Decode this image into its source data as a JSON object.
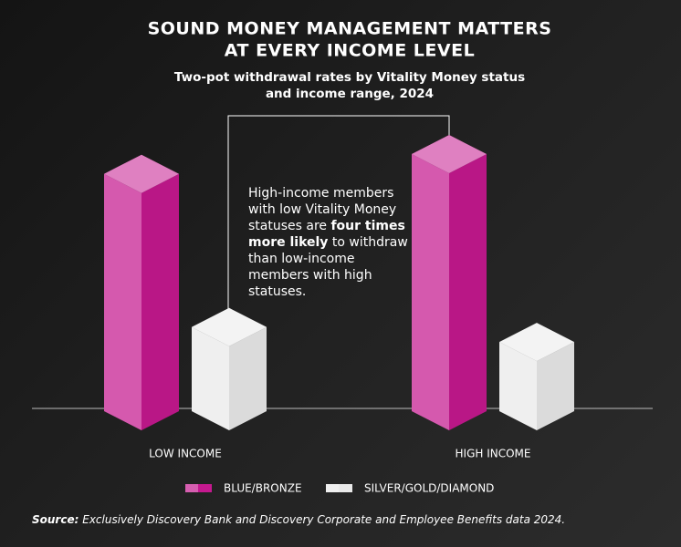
{
  "chart_data": {
    "type": "bar3d",
    "title": [
      "SOUND MONEY MANAGEMENT MATTERS",
      "AT EVERY INCOME LEVEL"
    ],
    "subtitle": [
      "Two-pot withdrawal rates by Vitality Money status",
      "and income range, 2024"
    ],
    "categories": [
      "LOW INCOME",
      "HIGH INCOME"
    ],
    "series": [
      {
        "name": "BLUE/BRONZE",
        "color": "#c5198f",
        "values": [
          24,
          26
        ]
      },
      {
        "name": "SILVER/GOLD/DIAMOND",
        "color": "#e9e9e9",
        "values": [
          8.5,
          7
        ]
      }
    ],
    "annotation": {
      "before": "High-income members with low Vitality Money statuses are ",
      "bold": "four times more likely",
      "after": " to withdraw than low-income members with high statuses."
    },
    "source": {
      "label": "Source:",
      "text": "Exclusively Discovery Bank and Discovery Corporate and Employee Benefits data 2024."
    }
  }
}
